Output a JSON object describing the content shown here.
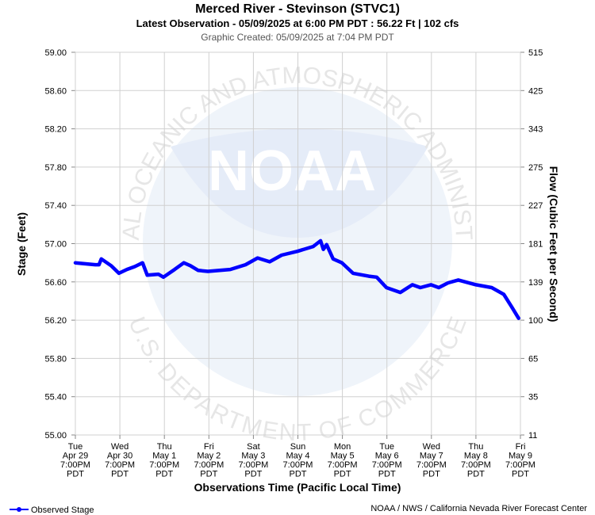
{
  "chart_data": {
    "type": "line",
    "title": "Merced River - Stevinson (STVC1)",
    "subtitle": "Latest Observation - 05/09/2025 at 6:00 PM PDT : 56.22 Ft | 102 cfs",
    "created": "Graphic Created: 05/09/2025 at 7:04 PM PDT",
    "y_label": "Stage (Feet)",
    "y2_label": "Flow (Cubic Feet per Second)",
    "x_label": "Observations Time (Pacific Local Time)",
    "credit": "NOAA / NWS / California Nevada River Forecast Center",
    "watermark": {
      "top": "NATIONAL OCEANIC AND ATMOSPHERIC ADMINISTRATION",
      "center": "NOAA",
      "bottom": "U.S. DEPARTMENT OF COMMERCE"
    },
    "grid": true,
    "legend": "bottom-left",
    "xlim": [
      "2025-04-29T19:00",
      "2025-05-09T19:00"
    ],
    "xticks": [
      {
        "value": "2025-04-29T19:00",
        "label": [
          "Tue",
          "Apr 29",
          "7:00PM",
          "PDT"
        ]
      },
      {
        "value": "2025-04-30T19:00",
        "label": [
          "Wed",
          "Apr 30",
          "7:00PM",
          "PDT"
        ]
      },
      {
        "value": "2025-05-01T19:00",
        "label": [
          "Thu",
          "May 1",
          "7:00PM",
          "PDT"
        ]
      },
      {
        "value": "2025-05-02T19:00",
        "label": [
          "Fri",
          "May 2",
          "7:00PM",
          "PDT"
        ]
      },
      {
        "value": "2025-05-03T19:00",
        "label": [
          "Sat",
          "May 3",
          "7:00PM",
          "PDT"
        ]
      },
      {
        "value": "2025-05-04T19:00",
        "label": [
          "Sun",
          "May 4",
          "7:00PM",
          "PDT"
        ]
      },
      {
        "value": "2025-05-05T19:00",
        "label": [
          "Mon",
          "May 5",
          "7:00PM",
          "PDT"
        ]
      },
      {
        "value": "2025-05-06T19:00",
        "label": [
          "Tue",
          "May 6",
          "7:00PM",
          "PDT"
        ]
      },
      {
        "value": "2025-05-07T19:00",
        "label": [
          "Wed",
          "May 7",
          "7:00PM",
          "PDT"
        ]
      },
      {
        "value": "2025-05-08T19:00",
        "label": [
          "Thu",
          "May 8",
          "7:00PM",
          "PDT"
        ]
      },
      {
        "value": "2025-05-09T19:00",
        "label": [
          "Fri",
          "May 9",
          "7:00PM",
          "PDT"
        ]
      }
    ],
    "ylim": [
      55.0,
      59.0
    ],
    "yticks": [
      {
        "value": 59.0,
        "label": "59.00"
      },
      {
        "value": 58.6,
        "label": "58.60"
      },
      {
        "value": 58.2,
        "label": "58.20"
      },
      {
        "value": 57.8,
        "label": "57.80"
      },
      {
        "value": 57.4,
        "label": "57.40"
      },
      {
        "value": 57.0,
        "label": "57.00"
      },
      {
        "value": 56.6,
        "label": "56.60"
      },
      {
        "value": 56.2,
        "label": "56.20"
      },
      {
        "value": 55.8,
        "label": "55.80"
      },
      {
        "value": 55.4,
        "label": "55.40"
      },
      {
        "value": 55.0,
        "label": "55.00"
      }
    ],
    "y2ticks": [
      515,
      425,
      343,
      275,
      227,
      181,
      139,
      100,
      65,
      35,
      11
    ],
    "x": [
      "2025-04-29T19:00",
      "2025-04-30T05:45",
      "2025-04-30T07:45",
      "2025-04-30T09:00",
      "2025-04-30T14:15",
      "2025-04-30T18:30",
      "2025-04-30T22:45",
      "2025-05-01T03:00",
      "2025-05-01T07:15",
      "2025-05-01T09:45",
      "2025-05-01T15:45",
      "2025-05-01T18:30",
      "2025-05-02T00:30",
      "2025-05-02T05:30",
      "2025-05-02T09:00",
      "2025-05-02T13:15",
      "2025-05-02T18:30",
      "2025-05-03T06:30",
      "2025-05-03T14:45",
      "2025-05-03T21:15",
      "2025-05-04T03:45",
      "2025-05-04T10:15",
      "2025-05-04T18:45",
      "2025-05-05T03:15",
      "2025-05-05T07:15",
      "2025-05-05T08:45",
      "2025-05-05T10:30",
      "2025-05-05T14:00",
      "2025-05-05T18:45",
      "2025-05-06T00:45",
      "2025-05-06T09:15",
      "2025-05-06T13:30",
      "2025-05-06T18:45",
      "2025-05-07T02:15",
      "2025-05-07T08:45",
      "2025-05-07T13:00",
      "2025-05-07T18:45",
      "2025-05-07T23:00",
      "2025-05-08T04:00",
      "2025-05-08T09:30",
      "2025-05-08T19:00",
      "2025-05-09T03:30",
      "2025-05-09T10:00",
      "2025-05-09T14:15",
      "2025-05-09T18:00"
    ],
    "series": [
      {
        "name": "Observed Stage",
        "color": "#0000ff",
        "values": [
          56.8,
          56.78,
          56.78,
          56.84,
          56.77,
          56.69,
          56.73,
          56.76,
          56.8,
          56.67,
          56.68,
          56.65,
          56.73,
          56.8,
          56.77,
          56.72,
          56.71,
          56.73,
          56.78,
          56.85,
          56.81,
          56.88,
          56.92,
          56.97,
          57.03,
          56.94,
          56.99,
          56.84,
          56.8,
          56.69,
          56.66,
          56.65,
          56.54,
          56.49,
          56.57,
          56.54,
          56.57,
          56.54,
          56.59,
          56.62,
          56.57,
          56.54,
          56.47,
          56.34,
          56.22
        ]
      }
    ]
  }
}
